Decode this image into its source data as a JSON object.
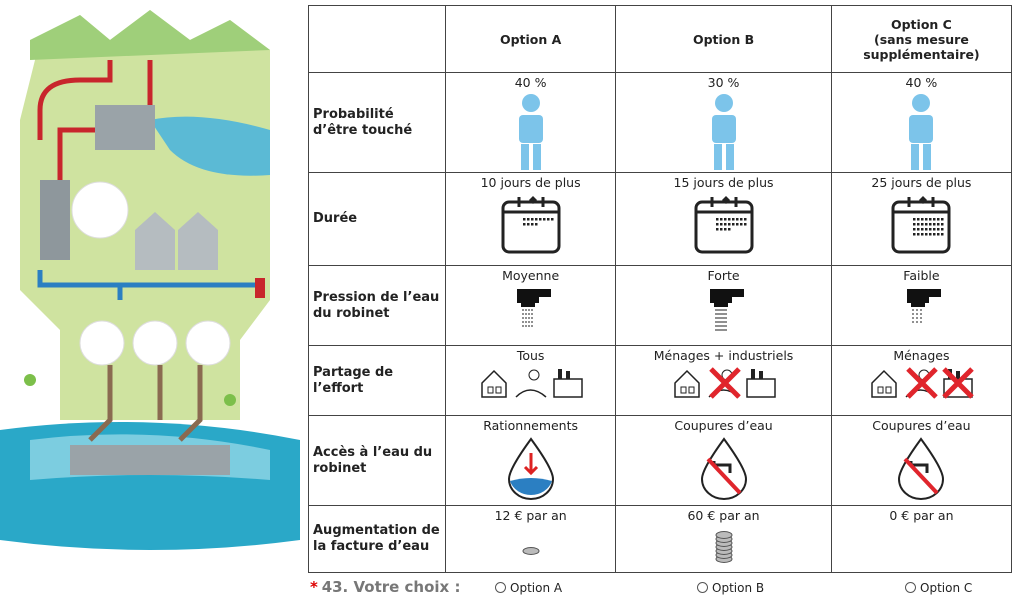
{
  "table": {
    "options": [
      "Option A",
      "Option B",
      "Option C\n(sans mesure\nsupplémentaire)"
    ],
    "rows": [
      {
        "label": "Probabilité d’être touché",
        "cells": [
          "40 %",
          "30 %",
          "40 %"
        ]
      },
      {
        "label": "Durée",
        "cells": [
          "10 jours de plus",
          "15 jours de plus",
          "25 jours de plus"
        ]
      },
      {
        "label": "Pression de l’eau du robinet",
        "cells": [
          "Moyenne",
          "Forte",
          "Faible"
        ]
      },
      {
        "label": "Partage de l’effort",
        "cells": [
          "Tous",
          "Ménages + industriels",
          "Ménages"
        ]
      },
      {
        "label": "Accès à l’eau du robinet",
        "cells": [
          "Rationnements",
          "Coupures d’eau",
          "Coupures d’eau"
        ]
      },
      {
        "label": "Augmentation de la facture d’eau",
        "cells": [
          "12 € par an",
          "60 € par an",
          "0 € par an"
        ]
      }
    ]
  },
  "question": {
    "required_mark": "*",
    "label": "43. Votre choix :",
    "choices": [
      "Option A",
      "Option B",
      "Option C"
    ]
  }
}
